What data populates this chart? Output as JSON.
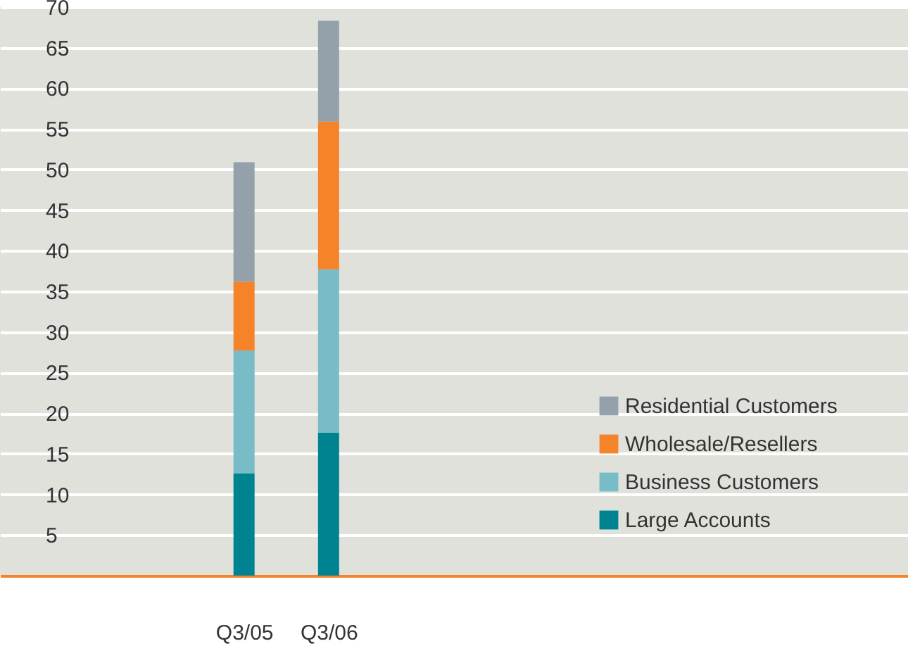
{
  "chart_data": {
    "type": "bar",
    "stacked": true,
    "categories": [
      "Q3/05",
      "Q3/06"
    ],
    "series": [
      {
        "name": "Large Accounts",
        "color": "#008391",
        "values": [
          12.6,
          17.6
        ]
      },
      {
        "name": "Business Customers",
        "color": "#77bcc6",
        "values": [
          15.1,
          20.1
        ]
      },
      {
        "name": "Wholesale/Resellers",
        "color": "#f5832a",
        "values": [
          8.5,
          18.2
        ]
      },
      {
        "name": "Residential Customers",
        "color": "#95a1aa",
        "values": [
          14.7,
          12.4
        ]
      }
    ],
    "ylim": [
      0,
      70
    ],
    "yticks": [
      5,
      10,
      15,
      20,
      25,
      30,
      35,
      40,
      45,
      50,
      55,
      60,
      65,
      70
    ],
    "grid": "y",
    "legend": "bottom right"
  }
}
